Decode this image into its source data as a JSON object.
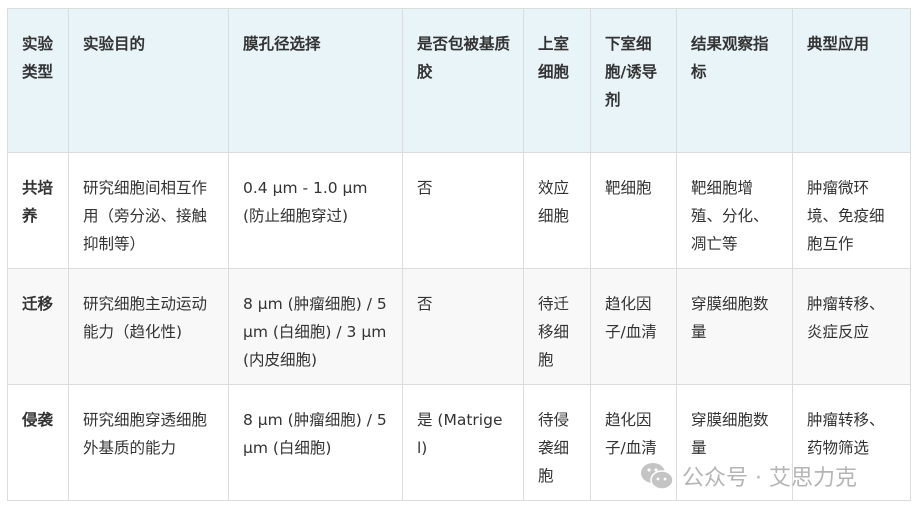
{
  "table": {
    "headers": [
      "实验类型",
      "实验目的",
      "膜孔径选择",
      "是否包被基质胶",
      "上室细胞",
      "下室细胞/诱导剂",
      "结果观察指标",
      "典型应用"
    ],
    "rows": [
      [
        "共培养",
        "研究细胞间相互作用（旁分泌、接触抑制等）",
        "0.4 μm - 1.0 μm (防止细胞穿过)",
        "否",
        "效应细胞",
        "靶细胞",
        "靶细胞增殖、分化、凋亡等",
        "肿瘤微环境、免疫细胞互作"
      ],
      [
        "迁移",
        "研究细胞主动运动能力（趋化性)",
        "8 μm (肿瘤细胞) / 5 μm (白细胞) / 3 μm (内皮细胞)",
        "否",
        "待迁移细胞",
        "趋化因子/血清",
        "穿膜细胞数量",
        "肿瘤转移、炎症反应"
      ],
      [
        "侵袭",
        "研究细胞穿透细胞外基质的能力",
        "8 μm (肿瘤细胞) / 5 μm (白细胞)",
        "是 (Matrigel)",
        "待侵袭细胞",
        "趋化因子/血清",
        "穿膜细胞数量",
        "肿瘤转移、药物筛选"
      ]
    ]
  },
  "watermark": {
    "icon": "wechat-icon",
    "text": "公众号 · 艾思力克"
  },
  "colors": {
    "header_bg": "#e9f4f9",
    "stripe_bg": "#f8f8f8",
    "border": "#dcdcdc"
  }
}
